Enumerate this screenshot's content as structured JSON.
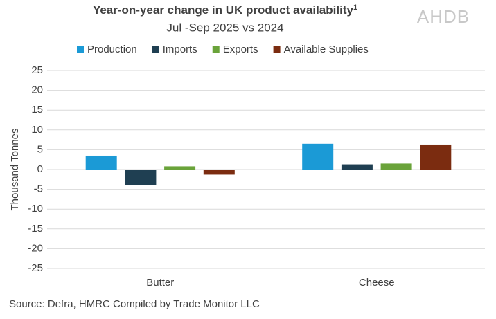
{
  "chart_data": {
    "type": "bar",
    "title": "Year-on-year change in UK product availability",
    "title_note": "1",
    "subtitle": "Jul -Sep 2025 vs 2024",
    "logo": "AHDB",
    "y_label": "Thousand Tonnes",
    "source": "Source: Defra, HMRC Compiled by Trade Monitor LLC",
    "categories": [
      "Butter",
      "Cheese"
    ],
    "series": [
      {
        "name": "Production",
        "color": "#1b9ad6",
        "values": [
          3.5,
          6.5
        ]
      },
      {
        "name": "Imports",
        "color": "#1f3f52",
        "values": [
          -4,
          1.3
        ]
      },
      {
        "name": "Exports",
        "color": "#6aa33a",
        "values": [
          0.8,
          1.5
        ]
      },
      {
        "name": "Available Supplies",
        "color": "#7b2c10",
        "values": [
          -1.3,
          6.3
        ]
      }
    ],
    "ylim": [
      -25,
      25
    ],
    "yticks": [
      -25,
      -20,
      -15,
      -10,
      -5,
      0,
      5,
      10,
      15,
      20,
      25
    ],
    "grid": true,
    "legend": "top"
  }
}
